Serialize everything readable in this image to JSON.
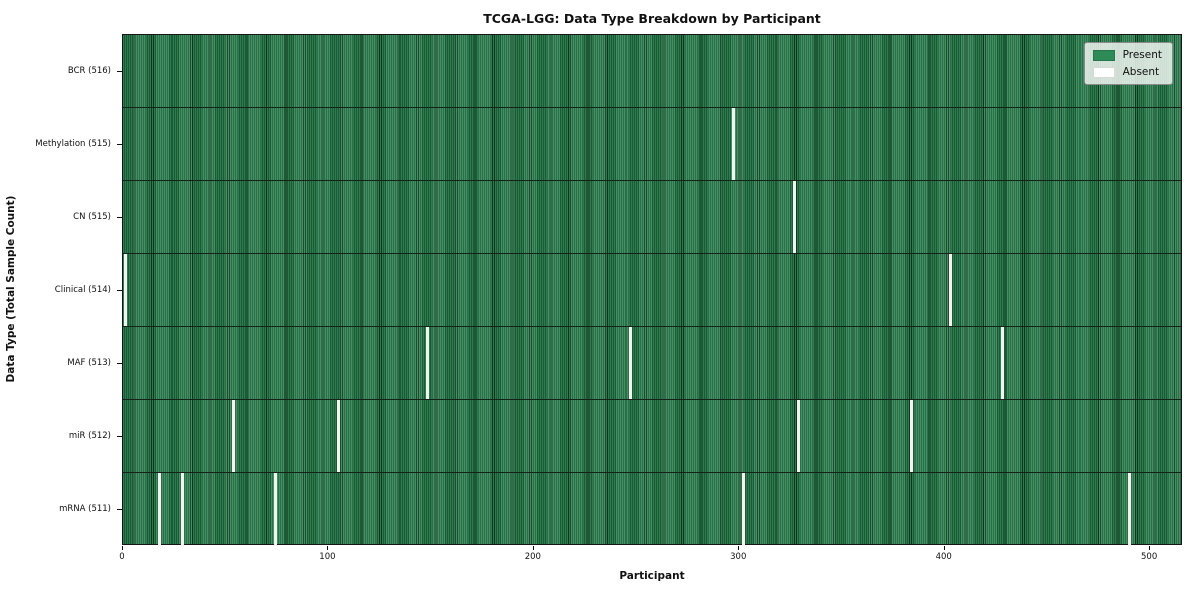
{
  "title": "TCGA-LGG: Data Type Breakdown by Participant",
  "xlabel": "Participant",
  "ylabel": "Data Type (Total Sample Count)",
  "legend": {
    "present_label": "Present",
    "absent_label": "Absent"
  },
  "colors": {
    "present": "#2e8b57",
    "present_edge": "#16381f",
    "absent": "#f2f3f1"
  },
  "chart_data": {
    "type": "heatmap",
    "title": "TCGA-LGG: Data Type Breakdown by Participant",
    "xlabel": "Participant",
    "ylabel": "Data Type (Total Sample Count)",
    "x_ticks": [
      0,
      100,
      200,
      300,
      400,
      500
    ],
    "xlim": [
      0,
      516
    ],
    "total_participants": 516,
    "legend_entries": [
      "Present",
      "Absent"
    ],
    "legend_position": "upper right",
    "grid": false,
    "rows": [
      {
        "label": "BCR (516)",
        "data_type": "BCR",
        "sample_count": 516,
        "absent_participants": []
      },
      {
        "label": "Methylation (515)",
        "data_type": "Methylation",
        "sample_count": 515,
        "absent_participants": [
          297
        ]
      },
      {
        "label": "CN (515)",
        "data_type": "CN",
        "sample_count": 515,
        "absent_participants": [
          327
        ]
      },
      {
        "label": "Clinical (514)",
        "data_type": "Clinical",
        "sample_count": 514,
        "absent_participants": [
          1,
          403
        ]
      },
      {
        "label": "MAF (513)",
        "data_type": "MAF",
        "sample_count": 513,
        "absent_participants": [
          148,
          247,
          428
        ]
      },
      {
        "label": "miR (512)",
        "data_type": "miR",
        "sample_count": 512,
        "absent_participants": [
          54,
          105,
          329,
          384
        ]
      },
      {
        "label": "mRNA (511)",
        "data_type": "mRNA",
        "sample_count": 511,
        "absent_participants": [
          18,
          29,
          74,
          302,
          490
        ]
      }
    ]
  }
}
